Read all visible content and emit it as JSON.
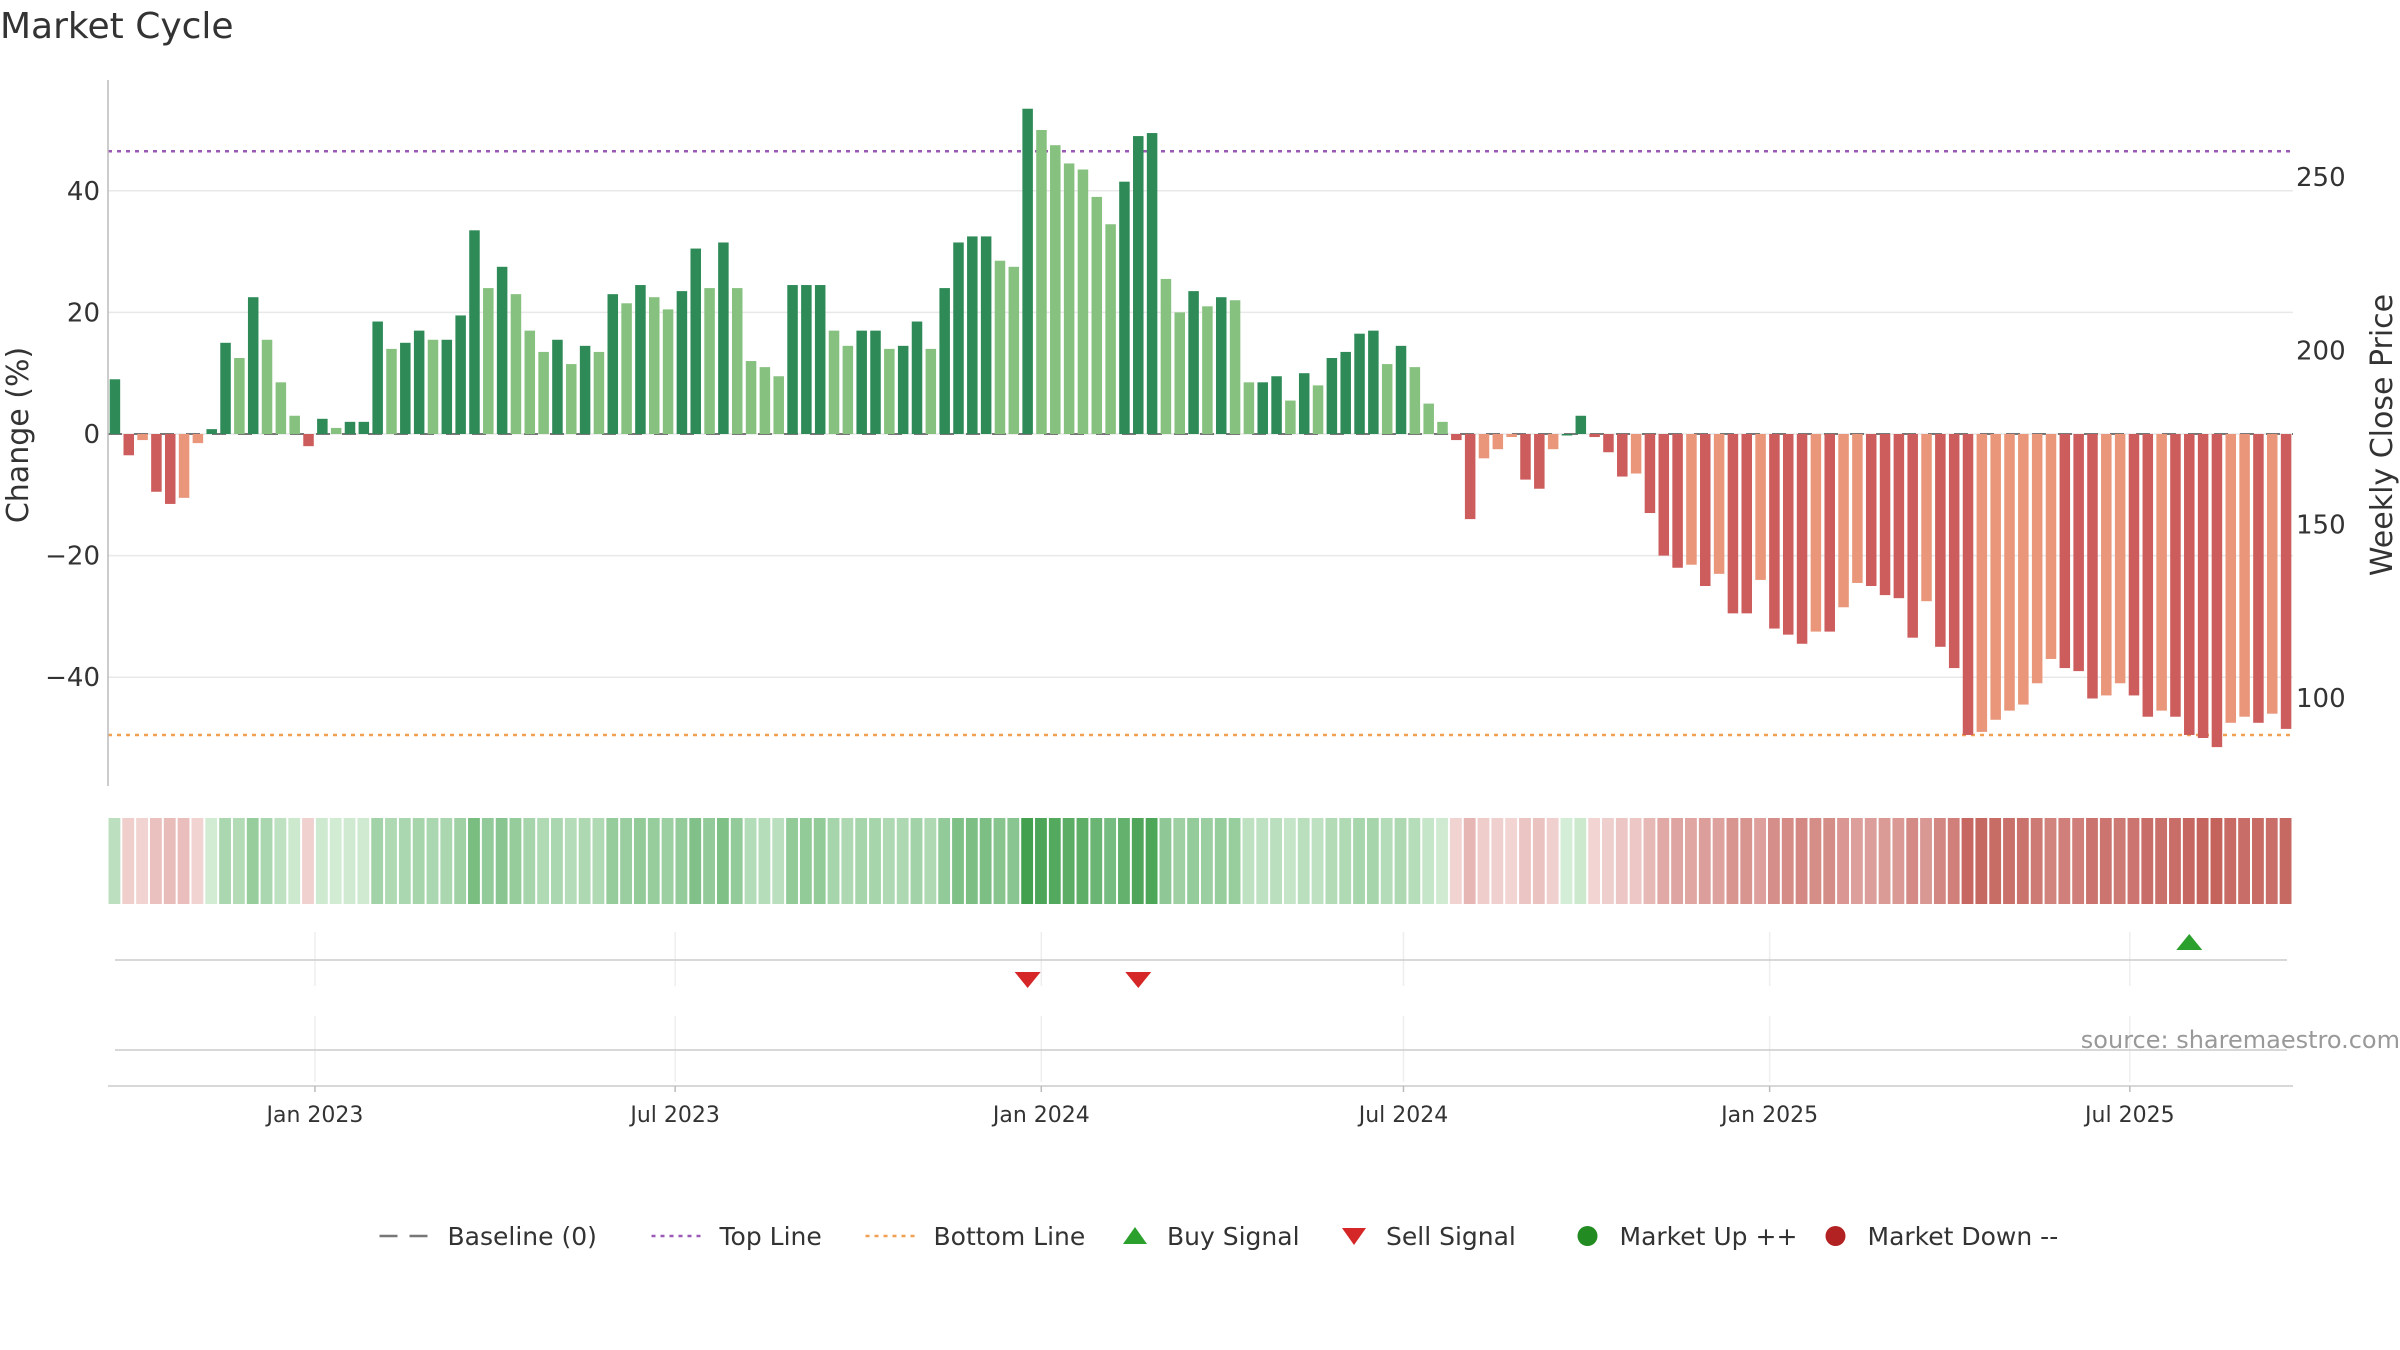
{
  "chart_data": {
    "type": "bar",
    "title": "Market Cycle",
    "ylabel": "Change (%)",
    "y2label": "Weekly Close Price",
    "ylim": [
      -58,
      58
    ],
    "y_ticks": [
      40,
      20,
      0,
      -20,
      -40
    ],
    "y_tick_labels": [
      "40",
      "20",
      "0",
      "−20",
      "−40"
    ],
    "y2lim": [
      70,
      280
    ],
    "y2_ticks": [
      250,
      200,
      150,
      100
    ],
    "x_start": "2022-09-19",
    "x_end": "2025-09-21",
    "x_ticks": [
      "2023-01-01",
      "2023-07-01",
      "2024-01-01",
      "2024-07-01",
      "2025-01-01",
      "2025-07-01"
    ],
    "x_tick_labels": [
      "Jan 2023",
      "Jul 2023",
      "Jan 2024",
      "Jul 2024",
      "Jan 2025",
      "Jul 2025"
    ],
    "top_line": 46.5,
    "bottom_line": -49.5,
    "source": "source: sharemaestro.com",
    "grid": true,
    "legend_position": "bottom-center",
    "colors": {
      "up_dark": "#2e8b57",
      "up_light": "#86c17f",
      "down_dark": "#cd5c5c",
      "down_light": "#e9967a",
      "top_line": "#9b59b6",
      "bottom_line": "#f0a050",
      "buy": "#2ca02c",
      "sell": "#d62728",
      "market_up": "#228b22",
      "market_down": "#b22222"
    },
    "series": [
      {
        "name": "Change (%)",
        "values": [
          9,
          -3.5,
          -1,
          -9.5,
          -11.5,
          -10.5,
          -1.5,
          0.8,
          15,
          12.5,
          22.5,
          15.5,
          8.5,
          3,
          -2,
          2.5,
          1,
          2,
          2,
          18.5,
          14,
          15,
          17,
          15.5,
          15.5,
          19.5,
          33.5,
          24,
          27.5,
          23,
          17,
          13.5,
          15.5,
          11.5,
          14.5,
          13.5,
          23,
          21.5,
          24.5,
          22.5,
          20.5,
          23.5,
          30.5,
          24,
          31.5,
          24,
          12,
          11,
          9.5,
          24.5,
          24.5,
          24.5,
          17,
          14.5,
          17,
          17,
          14,
          14.5,
          18.5,
          14,
          24,
          31.5,
          32.5,
          32.5,
          28.5,
          27.5,
          53.5,
          50,
          47.5,
          44.5,
          43.5,
          39,
          34.5,
          41.5,
          49,
          49.5,
          25.5,
          20,
          23.5,
          21,
          22.5,
          22,
          8.5,
          8.5,
          9.5,
          5.5,
          10,
          8,
          12.5,
          13.5,
          16.5,
          17,
          11.5,
          14.5,
          11,
          5,
          2,
          -1,
          -14,
          -4,
          -2.5,
          -0.5,
          -7.5,
          -9,
          -2.5,
          0,
          3,
          -0.5,
          -3,
          -7,
          -6.5,
          -13,
          -20,
          -22,
          -21.5,
          -25,
          -23,
          -29.5,
          -29.5,
          -24,
          -32,
          -33,
          -34.5,
          -32.5,
          -32.5,
          -28.5,
          -24.5,
          -25,
          -26.5,
          -27,
          -33.5,
          -27.5,
          -35,
          -38.5,
          -49.5,
          -49,
          -47,
          -45.5,
          -44.5,
          -41,
          -37,
          -38.5,
          -39,
          -43.5,
          -43,
          -41,
          -43,
          -46.5,
          -45.5,
          -46.5,
          -49.5,
          -50,
          -51.5,
          -47.5,
          -46.5,
          -47.5,
          -46,
          -48.5
        ]
      }
    ],
    "signals": [
      {
        "name": "Sell Signal",
        "index": 66,
        "type": "sell"
      },
      {
        "name": "Sell Signal",
        "index": 74,
        "type": "sell"
      },
      {
        "name": "Buy Signal",
        "index": 150,
        "type": "buy"
      }
    ],
    "legend": [
      {
        "label": "Baseline (0)",
        "type": "dashed-line",
        "color": "#777777"
      },
      {
        "label": "Top Line",
        "type": "dotted-line",
        "color": "#9b59b6"
      },
      {
        "label": "Bottom Line",
        "type": "dotted-line",
        "color": "#f0a050"
      },
      {
        "label": "Buy Signal",
        "type": "triangle-up",
        "color": "#2ca02c"
      },
      {
        "label": "Sell Signal",
        "type": "triangle-down",
        "color": "#d62728"
      },
      {
        "label": "Market Up ++",
        "type": "circle",
        "color": "#228b22"
      },
      {
        "label": "Market Down --",
        "type": "circle",
        "color": "#b22222"
      }
    ]
  }
}
